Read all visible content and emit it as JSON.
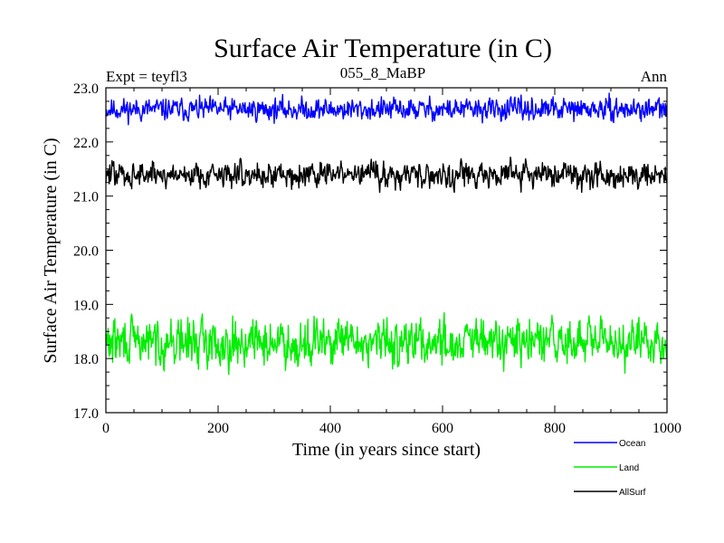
{
  "chart_data": {
    "type": "line",
    "title": "Surface Air Temperature (in C)",
    "subtitle": "055_8_MaBP",
    "annotation_left": "Expt = teyfl3",
    "annotation_right": "Ann",
    "xlabel": "Time (in years since start)",
    "ylabel": "Surface Air Temperature (in C)",
    "xlim": [
      0,
      1000
    ],
    "ylim": [
      17.0,
      23.0
    ],
    "x_ticks": [
      0,
      200,
      400,
      600,
      800,
      1000
    ],
    "x_tick_labels": [
      "0",
      "200",
      "400",
      "600",
      "800",
      "1000"
    ],
    "y_ticks": [
      17.0,
      18.0,
      19.0,
      20.0,
      21.0,
      22.0,
      23.0
    ],
    "y_tick_labels": [
      "17.0",
      "18.0",
      "19.0",
      "20.0",
      "21.0",
      "22.0",
      "23.0"
    ],
    "grid": false,
    "legend_position": "bottom-right",
    "series": [
      {
        "name": "Ocean",
        "color": "#0000ff",
        "mean": 22.6,
        "amplitude": 0.12,
        "seed": 11,
        "values_note": "annual mean, ~1000 yearly points"
      },
      {
        "name": "Land",
        "color": "#00ee00",
        "mean": 18.3,
        "amplitude": 0.25,
        "seed": 29,
        "values_note": "annual mean, ~1000 yearly points"
      },
      {
        "name": "AllSurf",
        "color": "#000000",
        "mean": 21.4,
        "amplitude": 0.14,
        "seed": 47,
        "values_note": "annual mean, ~1000 yearly points"
      }
    ]
  }
}
